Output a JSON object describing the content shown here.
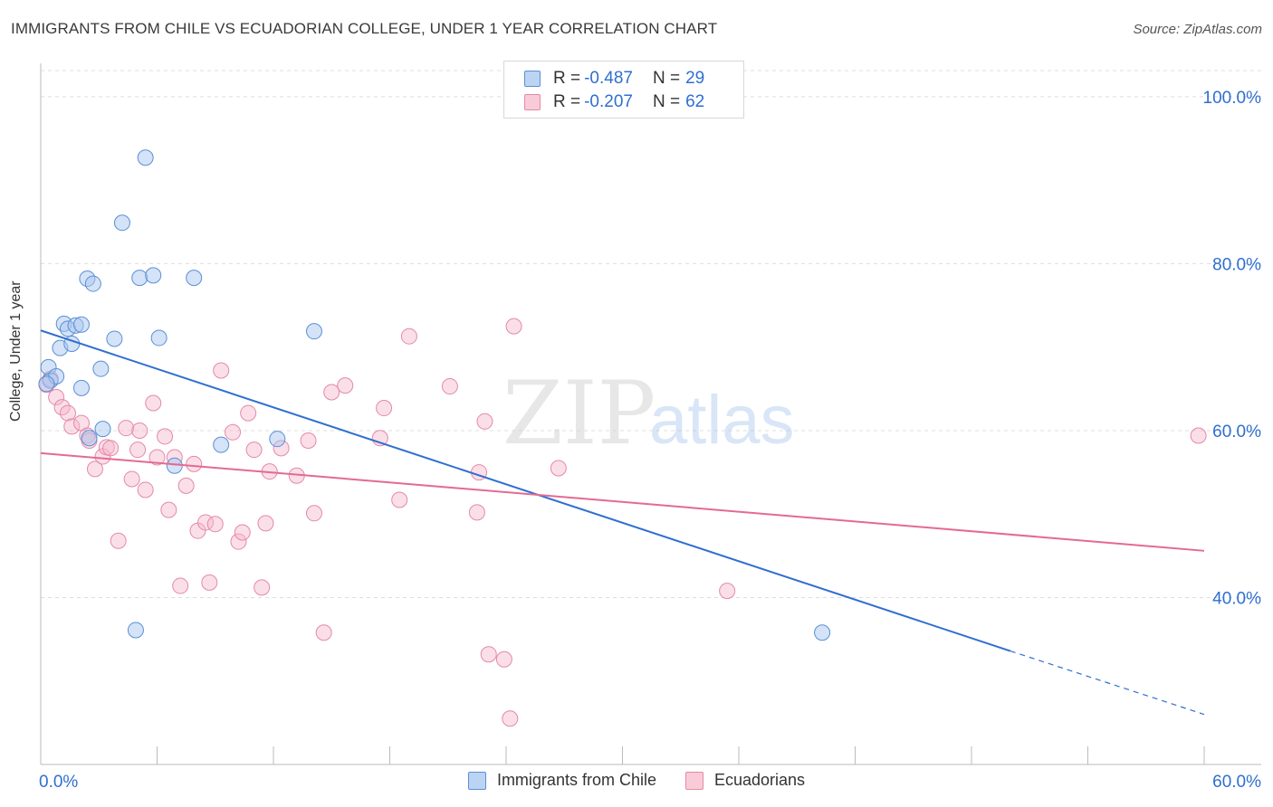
{
  "title": "IMMIGRANTS FROM CHILE VS ECUADORIAN COLLEGE, UNDER 1 YEAR CORRELATION CHART",
  "source": "Source: ZipAtlas.com",
  "watermark": {
    "zip": "ZIP",
    "atlas": "atlas"
  },
  "legend_top": {
    "rows": [
      {
        "r_label": "R =",
        "r_value": "-0.487",
        "n_label": "N =",
        "n_value": "29"
      },
      {
        "r_label": "R =",
        "r_value": "-0.207",
        "n_label": "N =",
        "n_value": "62"
      }
    ]
  },
  "legend_bottom": {
    "series1": "Immigrants from Chile",
    "series2": "Ecuadorians"
  },
  "colors": {
    "blue_fill": "#a9c8ef",
    "blue_stroke": "#5b8fd6",
    "blue_line": "#2f6fd0",
    "pink_fill": "#f7b9cb",
    "pink_stroke": "#e38aa6",
    "pink_line": "#e36a93",
    "axis_text": "#2f6fd0",
    "grid": "#dddddd"
  },
  "chart_data": {
    "type": "scatter",
    "title": "IMMIGRANTS FROM CHILE VS ECUADORIAN COLLEGE, UNDER 1 YEAR CORRELATION CHART",
    "xlabel": "",
    "ylabel": "College, Under 1 year",
    "xlim": [
      0,
      60
    ],
    "ylim": [
      20,
      104
    ],
    "x_tick_labels": [
      "0.0%",
      "60.0%"
    ],
    "y_ticks": [
      40,
      60,
      80,
      100
    ],
    "y_tick_labels": [
      "40.0%",
      "60.0%",
      "80.0%",
      "100.0%"
    ],
    "grid": true,
    "series": [
      {
        "name": "Immigrants from Chile",
        "color": "blue",
        "r": -0.487,
        "n": 29,
        "points": [
          [
            5.4,
            92.7
          ],
          [
            4.2,
            84.9
          ],
          [
            2.4,
            78.2
          ],
          [
            2.7,
            77.6
          ],
          [
            5.1,
            78.3
          ],
          [
            5.8,
            78.6
          ],
          [
            7.9,
            78.3
          ],
          [
            1.2,
            72.8
          ],
          [
            1.4,
            72.2
          ],
          [
            1.8,
            72.6
          ],
          [
            2.1,
            72.7
          ],
          [
            3.8,
            71.0
          ],
          [
            6.1,
            71.1
          ],
          [
            14.1,
            71.9
          ],
          [
            1.0,
            69.9
          ],
          [
            1.6,
            70.4
          ],
          [
            0.4,
            67.6
          ],
          [
            3.1,
            67.4
          ],
          [
            0.5,
            66.0
          ],
          [
            0.8,
            66.5
          ],
          [
            0.3,
            65.6
          ],
          [
            2.1,
            65.1
          ],
          [
            3.2,
            60.2
          ],
          [
            2.5,
            59.1
          ],
          [
            9.3,
            58.3
          ],
          [
            12.2,
            59.0
          ],
          [
            6.9,
            55.8
          ],
          [
            4.9,
            36.1
          ],
          [
            40.3,
            35.8
          ]
        ],
        "trend": {
          "x0": 0,
          "y0": 72.0,
          "x1": 50,
          "y1": 33.6,
          "dash_x1": 60,
          "dash_y1": 26.0
        }
      },
      {
        "name": "Ecuadorians",
        "color": "pink",
        "r": -0.207,
        "n": 62,
        "points": [
          [
            0.3,
            65.5
          ],
          [
            0.5,
            66.2
          ],
          [
            0.8,
            64.0
          ],
          [
            1.1,
            62.8
          ],
          [
            1.4,
            62.1
          ],
          [
            1.6,
            60.5
          ],
          [
            2.1,
            60.9
          ],
          [
            2.4,
            59.4
          ],
          [
            2.5,
            58.8
          ],
          [
            2.8,
            55.4
          ],
          [
            3.2,
            56.9
          ],
          [
            3.4,
            58.0
          ],
          [
            3.6,
            57.9
          ],
          [
            4.0,
            46.8
          ],
          [
            4.4,
            60.3
          ],
          [
            4.7,
            54.2
          ],
          [
            5.0,
            57.7
          ],
          [
            5.1,
            60.0
          ],
          [
            5.4,
            52.9
          ],
          [
            5.8,
            63.3
          ],
          [
            6.0,
            56.8
          ],
          [
            6.4,
            59.3
          ],
          [
            6.6,
            50.5
          ],
          [
            6.9,
            56.8
          ],
          [
            7.2,
            41.4
          ],
          [
            7.5,
            53.4
          ],
          [
            7.9,
            56.0
          ],
          [
            8.1,
            48.0
          ],
          [
            8.5,
            49.0
          ],
          [
            8.7,
            41.8
          ],
          [
            9.0,
            48.8
          ],
          [
            9.3,
            67.2
          ],
          [
            9.9,
            59.8
          ],
          [
            10.2,
            46.7
          ],
          [
            10.4,
            47.8
          ],
          [
            10.7,
            62.1
          ],
          [
            11.0,
            57.7
          ],
          [
            11.4,
            41.2
          ],
          [
            11.6,
            48.9
          ],
          [
            11.8,
            55.1
          ],
          [
            12.4,
            57.9
          ],
          [
            13.2,
            54.6
          ],
          [
            13.8,
            58.8
          ],
          [
            14.1,
            50.1
          ],
          [
            14.6,
            35.8
          ],
          [
            15.0,
            64.6
          ],
          [
            15.7,
            65.4
          ],
          [
            17.5,
            59.1
          ],
          [
            17.7,
            62.7
          ],
          [
            18.5,
            51.7
          ],
          [
            19.0,
            71.3
          ],
          [
            21.1,
            65.3
          ],
          [
            22.5,
            50.2
          ],
          [
            22.6,
            55.0
          ],
          [
            22.9,
            61.1
          ],
          [
            23.1,
            33.2
          ],
          [
            23.9,
            32.6
          ],
          [
            24.2,
            25.5
          ],
          [
            24.4,
            72.5
          ],
          [
            26.7,
            55.5
          ],
          [
            35.4,
            40.8
          ],
          [
            59.7,
            59.4
          ]
        ],
        "trend": {
          "x0": 0,
          "y0": 57.3,
          "x1": 60,
          "y1": 45.6
        }
      }
    ]
  }
}
